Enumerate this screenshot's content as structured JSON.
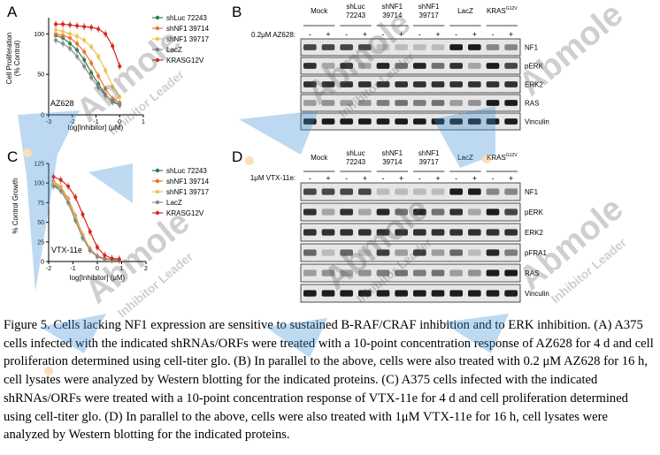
{
  "panels": {
    "A": {
      "letter": "A",
      "inset_label": "AZ628",
      "xlabel": "log[Inhibitor] (μM)",
      "ylabel": [
        "Cell Proliferation",
        "(% Control)"
      ]
    },
    "B": {
      "letter": "B",
      "treatment_label": "0.2μM AZ628:",
      "groups": [
        "Mock",
        "shLuc\n72243",
        "shNF1\n39714",
        "shNF1\n39717",
        "LacZ",
        "KRAS^G12V"
      ],
      "lane_signs": [
        "-",
        "+",
        "-",
        "+",
        "-",
        "+",
        "-",
        "+",
        "-",
        "+",
        "-",
        "+"
      ],
      "blots": [
        "NF1",
        "pERK",
        "ERK2",
        "RAS",
        "Vinculin"
      ]
    },
    "C": {
      "letter": "C",
      "inset_label": "VTX-11e",
      "xlabel": "log[Inhibitor] (μM)",
      "ylabel": [
        "% Control Growth"
      ]
    },
    "D": {
      "letter": "D",
      "treatment_label": "1μM VTX-11e:",
      "groups": [
        "Mock",
        "shLuc\n72243",
        "shNF1\n39714",
        "shNF1\n39717",
        "LacZ",
        "KRAS^G12V"
      ],
      "lane_signs": [
        "-",
        "+",
        "-",
        "+",
        "-",
        "+",
        "-",
        "+",
        "-",
        "+",
        "-",
        "+"
      ],
      "blots": [
        "NF1",
        "pERK",
        "ERK2",
        "pFRA1",
        "RAS",
        "Vinculin"
      ]
    }
  },
  "legend": [
    "shLuc 72243",
    "shNF1 39714",
    "shNF1 39717",
    "LacZ",
    "KRASG12V"
  ],
  "series_colors": [
    "#2e7d4f",
    "#e8742a",
    "#f0c050",
    "#8a8a8a",
    "#d9261c"
  ],
  "watermark": {
    "brand": "Abmole",
    "tagline": "Inhibitor Leader"
  },
  "caption": "Figure 5. Cells lacking NF1 expression are sensitive to sustained B-RAF/CRAF inhibition and to ERK inhibition. (A) A375 cells infected with the indicated shRNAs/ORFs were treated with a 10-point concentration response of AZ628 for 4 d and cell proliferation determined using cell-titer glo. (B) In parallel to the above, cells were also treated with 0.2 μM AZ628 for 16 h, cell lysates were analyzed by Western blotting for the indicated proteins. (C) A375 cells infected with the indicated shRNAs/ORFs were treated with a 10-point concentration response of VTX-11e for 4 d and cell proliferation determined using cell-titer glo. (D) In parallel to the above, cells were also treated with 1μM VTX-11e for 16 h, cell lysates were analyzed by Western blotting for the indicated proteins.",
  "chart_data": [
    {
      "type": "line",
      "title": "",
      "xlabel": "log[Inhibitor] (μM)",
      "ylabel": "Cell Proliferation (% Control)",
      "xlim": [
        -3,
        1
      ],
      "ylim": [
        0,
        120
      ],
      "xticks": [
        -3,
        -2,
        -1,
        0,
        1
      ],
      "yticks": [
        0,
        50,
        100
      ],
      "x": [
        -2.7,
        -2.4,
        -2.1,
        -1.8,
        -1.5,
        -1.2,
        -0.9,
        -0.6,
        -0.3,
        0.0
      ],
      "series": [
        {
          "name": "shLuc 72243",
          "values": [
            98,
            95,
            88,
            80,
            68,
            52,
            38,
            25,
            16,
            12
          ]
        },
        {
          "name": "shNF1 39714",
          "values": [
            100,
            98,
            95,
            88,
            78,
            64,
            48,
            32,
            20,
            15
          ]
        },
        {
          "name": "shNF1 39717",
          "values": [
            105,
            103,
            100,
            97,
            92,
            84,
            72,
            55,
            35,
            22
          ]
        },
        {
          "name": "LacZ",
          "values": [
            92,
            88,
            82,
            72,
            60,
            46,
            34,
            24,
            17,
            13
          ]
        },
        {
          "name": "KRASG12V",
          "values": [
            112,
            112,
            111,
            110,
            109,
            108,
            106,
            100,
            85,
            60
          ]
        }
      ]
    },
    {
      "type": "line",
      "title": "",
      "xlabel": "log[Inhibitor] (μM)",
      "ylabel": "% Control Growth",
      "xlim": [
        -2,
        2
      ],
      "ylim": [
        0,
        125
      ],
      "xticks": [
        -2,
        -1,
        0,
        1,
        2
      ],
      "yticks": [
        0,
        25,
        50,
        75,
        100,
        125
      ],
      "x": [
        -1.8,
        -1.5,
        -1.2,
        -0.9,
        -0.6,
        -0.3,
        0.0,
        0.3,
        0.6,
        0.9
      ],
      "series": [
        {
          "name": "shLuc 72243",
          "values": [
            98,
            92,
            78,
            55,
            32,
            15,
            6,
            3,
            2,
            2
          ]
        },
        {
          "name": "shNF1 39714",
          "values": [
            102,
            95,
            80,
            58,
            34,
            16,
            7,
            4,
            3,
            2
          ]
        },
        {
          "name": "shNF1 39717",
          "values": [
            100,
            93,
            78,
            56,
            33,
            15,
            6,
            3,
            2,
            2
          ]
        },
        {
          "name": "LacZ",
          "values": [
            96,
            90,
            75,
            52,
            30,
            14,
            6,
            3,
            2,
            2
          ]
        },
        {
          "name": "KRASG12V",
          "values": [
            108,
            104,
            96,
            82,
            60,
            38,
            18,
            8,
            4,
            3
          ]
        }
      ]
    }
  ]
}
